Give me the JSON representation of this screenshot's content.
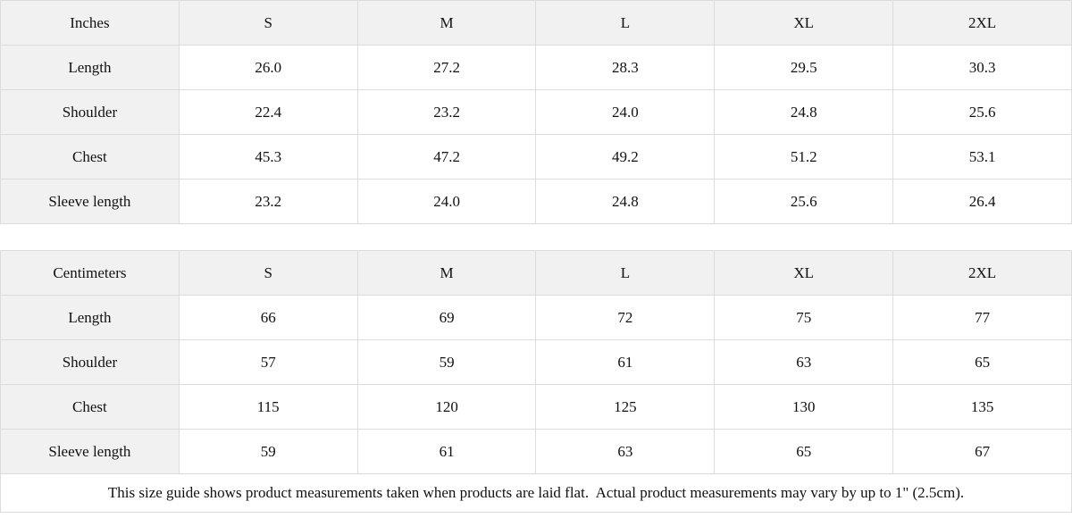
{
  "inches": {
    "unit_label": "Inches",
    "sizes": [
      "S",
      "M",
      "L",
      "XL",
      "2XL"
    ],
    "rows": [
      {
        "label": "Length",
        "values": [
          "26.0",
          "27.2",
          "28.3",
          "29.5",
          "30.3"
        ]
      },
      {
        "label": "Shoulder",
        "values": [
          "22.4",
          "23.2",
          "24.0",
          "24.8",
          "25.6"
        ]
      },
      {
        "label": "Chest",
        "values": [
          "45.3",
          "47.2",
          "49.2",
          "51.2",
          "53.1"
        ]
      },
      {
        "label": "Sleeve length",
        "values": [
          "23.2",
          "24.0",
          "24.8",
          "25.6",
          "26.4"
        ]
      }
    ]
  },
  "centimeters": {
    "unit_label": "Centimeters",
    "sizes": [
      "S",
      "M",
      "L",
      "XL",
      "2XL"
    ],
    "rows": [
      {
        "label": "Length",
        "values": [
          "66",
          "69",
          "72",
          "75",
          "77"
        ]
      },
      {
        "label": "Shoulder",
        "values": [
          "57",
          "59",
          "61",
          "63",
          "65"
        ]
      },
      {
        "label": "Chest",
        "values": [
          "115",
          "120",
          "125",
          "130",
          "135"
        ]
      },
      {
        "label": "Sleeve length",
        "values": [
          "59",
          "61",
          "63",
          "65",
          "67"
        ]
      }
    ]
  },
  "footer": {
    "note": "This size guide shows product measurements taken when products are laid flat.  Actual product measurements may vary by up to 1\" (2.5cm)."
  },
  "colors": {
    "header_bg": "#f1f1f1",
    "border": "#dcdcdc",
    "text": "#111111",
    "background": "#ffffff"
  }
}
